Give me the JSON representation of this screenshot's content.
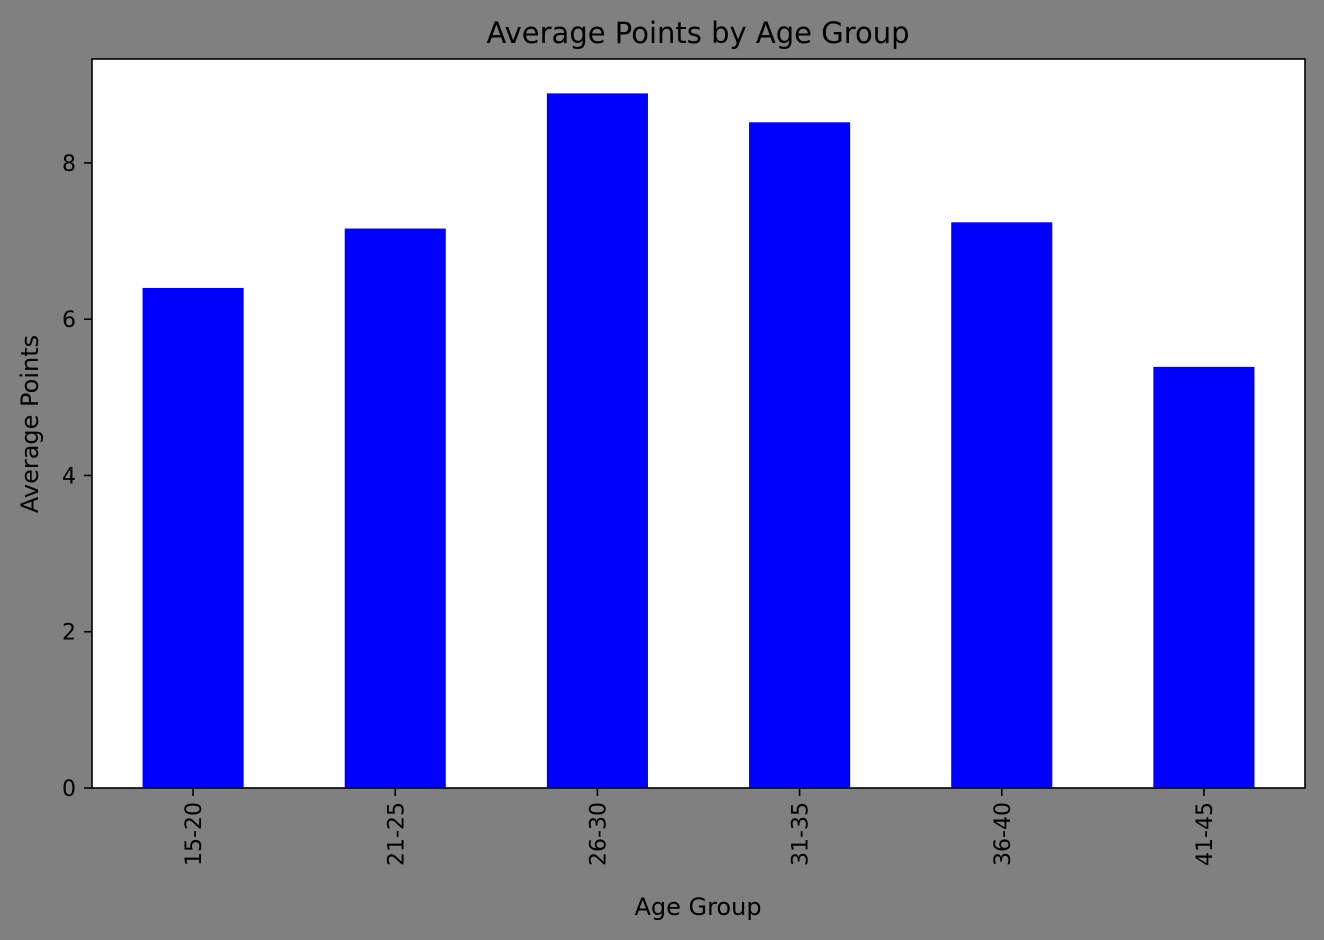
{
  "chart_data": {
    "type": "bar",
    "title": "Average Points by Age Group",
    "xlabel": "Age Group",
    "ylabel": "Average Points",
    "categories": [
      "15-20",
      "21-25",
      "26-30",
      "31-35",
      "36-40",
      "41-45"
    ],
    "values": [
      6.4,
      7.16,
      8.89,
      8.52,
      7.24,
      5.39
    ],
    "ylim": [
      0,
      9.33
    ],
    "yticks": [
      0,
      2,
      4,
      6,
      8
    ],
    "grid": false,
    "bar_color": "#0000ff",
    "figure_background": "#808080",
    "plot_background": "#ffffff"
  }
}
